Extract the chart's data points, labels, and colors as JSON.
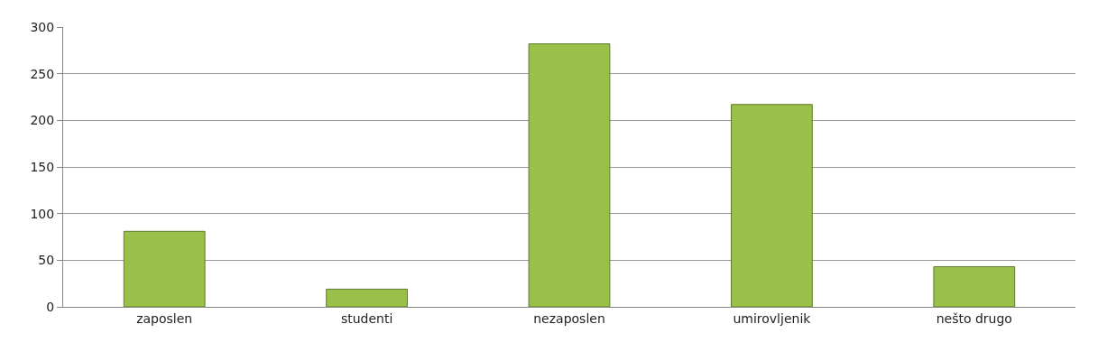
{
  "chart_data": {
    "type": "bar",
    "categories": [
      "zaposlen",
      "studenti",
      "nezaposlen",
      "umirovljenik",
      "nešto drugo"
    ],
    "values": [
      81,
      19,
      282,
      217,
      43
    ],
    "color": "#9bc04a",
    "ylim": [
      0,
      300
    ],
    "yticks": [
      0,
      50,
      100,
      150,
      200,
      250,
      300
    ],
    "grid": "y"
  }
}
